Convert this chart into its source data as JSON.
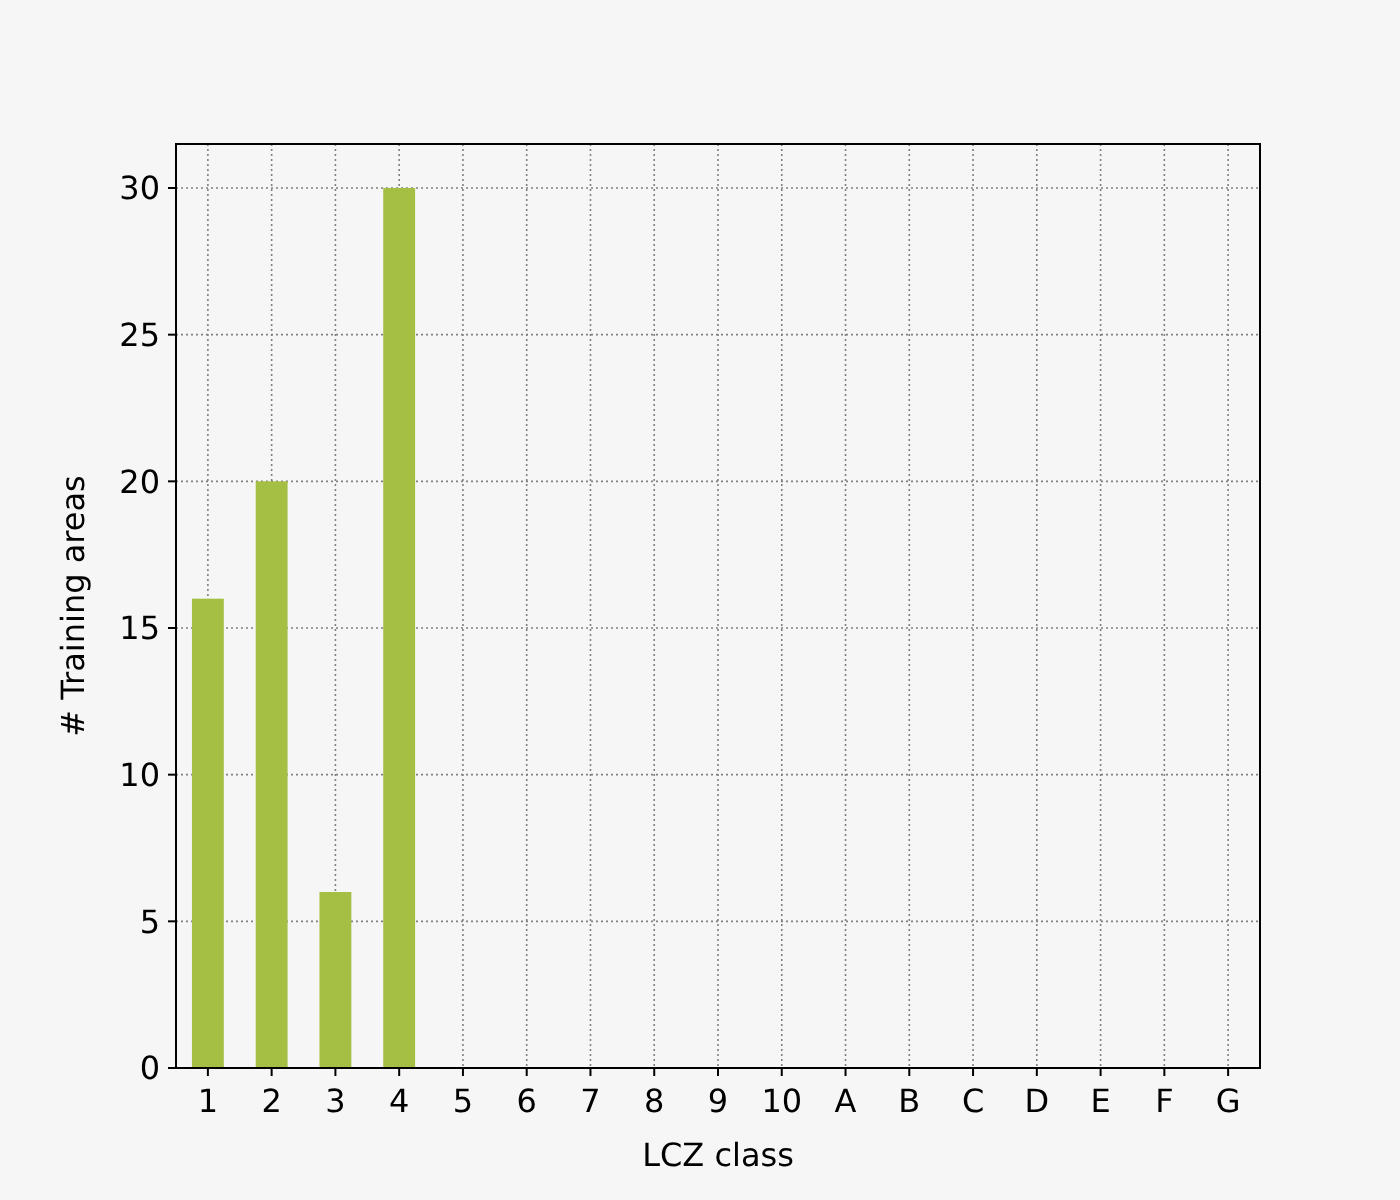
{
  "chart_data": {
    "type": "bar",
    "xlabel": "LCZ class",
    "ylabel": "# Training areas",
    "categories": [
      "1",
      "2",
      "3",
      "4",
      "5",
      "6",
      "7",
      "8",
      "9",
      "10",
      "A",
      "B",
      "C",
      "D",
      "E",
      "F",
      "G"
    ],
    "values": [
      16,
      20,
      6,
      30,
      0,
      0,
      0,
      0,
      0,
      0,
      0,
      0,
      0,
      0,
      0,
      0,
      0
    ],
    "color": "#a5bf45",
    "ylim": [
      0,
      31.5
    ],
    "yticks": [
      0,
      5,
      10,
      15,
      20,
      25,
      30
    ],
    "grid": true
  }
}
